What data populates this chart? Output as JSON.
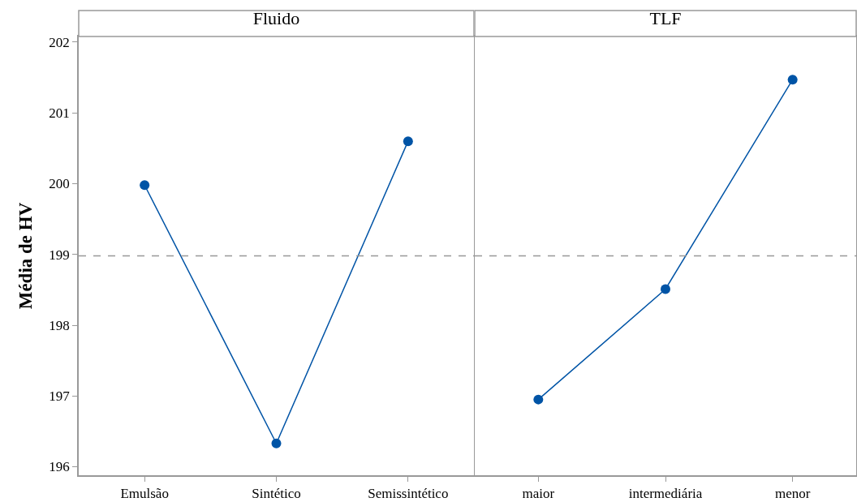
{
  "chart_data": [
    {
      "type": "line",
      "title": "Fluido",
      "ylabel": "Média de HV",
      "categories": [
        "Emulsão",
        "Sintético",
        "Semissintético"
      ],
      "series": [
        {
          "color": "#0054a6",
          "values": [
            199.98,
            196.33,
            200.6
          ]
        }
      ],
      "ylim": [
        195.88,
        202.08
      ],
      "yticks": [
        196,
        197,
        198,
        199,
        200,
        201,
        202
      ],
      "marker": "circle",
      "line_style": "solid",
      "ref_lines": [
        {
          "axis": "y",
          "value": 198.98,
          "color": "#999999",
          "line_style": "dashed"
        }
      ]
    },
    {
      "type": "line",
      "title": "TLF",
      "categories": [
        "maior",
        "intermediária",
        "menor"
      ],
      "series": [
        {
          "color": "#0054a6",
          "values": [
            196.95,
            198.51,
            201.47
          ]
        }
      ],
      "ylim": [
        195.88,
        202.08
      ],
      "yticks": [
        196,
        197,
        198,
        199,
        200,
        201,
        202
      ],
      "tick_labels": "x",
      "marker": "circle",
      "line_style": "solid",
      "ref_lines": [
        {
          "axis": "y",
          "value": 198.98,
          "color": "#999999",
          "line_style": "dashed"
        }
      ]
    }
  ]
}
